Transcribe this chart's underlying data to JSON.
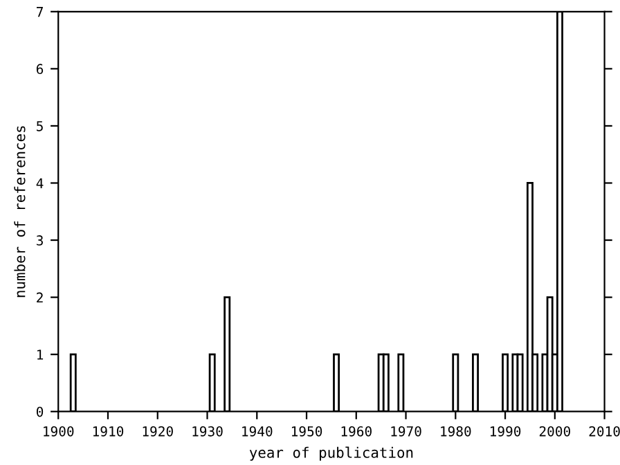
{
  "chart_data": {
    "type": "bar",
    "xlabel": "year of publication",
    "ylabel": "number of references",
    "x": [
      1903,
      1931,
      1934,
      1956,
      1965,
      1966,
      1969,
      1980,
      1984,
      1990,
      1992,
      1993,
      1995,
      1996,
      1998,
      1999,
      2000,
      2001
    ],
    "values": [
      1,
      1,
      2,
      1,
      1,
      1,
      1,
      1,
      1,
      1,
      1,
      1,
      4,
      1,
      1,
      2,
      1,
      7
    ],
    "color": "#ffffff",
    "xlim": [
      1900,
      2010
    ],
    "xticks": [
      1900,
      1910,
      1920,
      1930,
      1940,
      1950,
      1960,
      1970,
      1980,
      1990,
      2000,
      2010
    ],
    "ylim": [
      0,
      7
    ],
    "yticks": [
      0,
      1,
      2,
      3,
      4,
      5,
      6,
      7
    ],
    "grid": false
  }
}
